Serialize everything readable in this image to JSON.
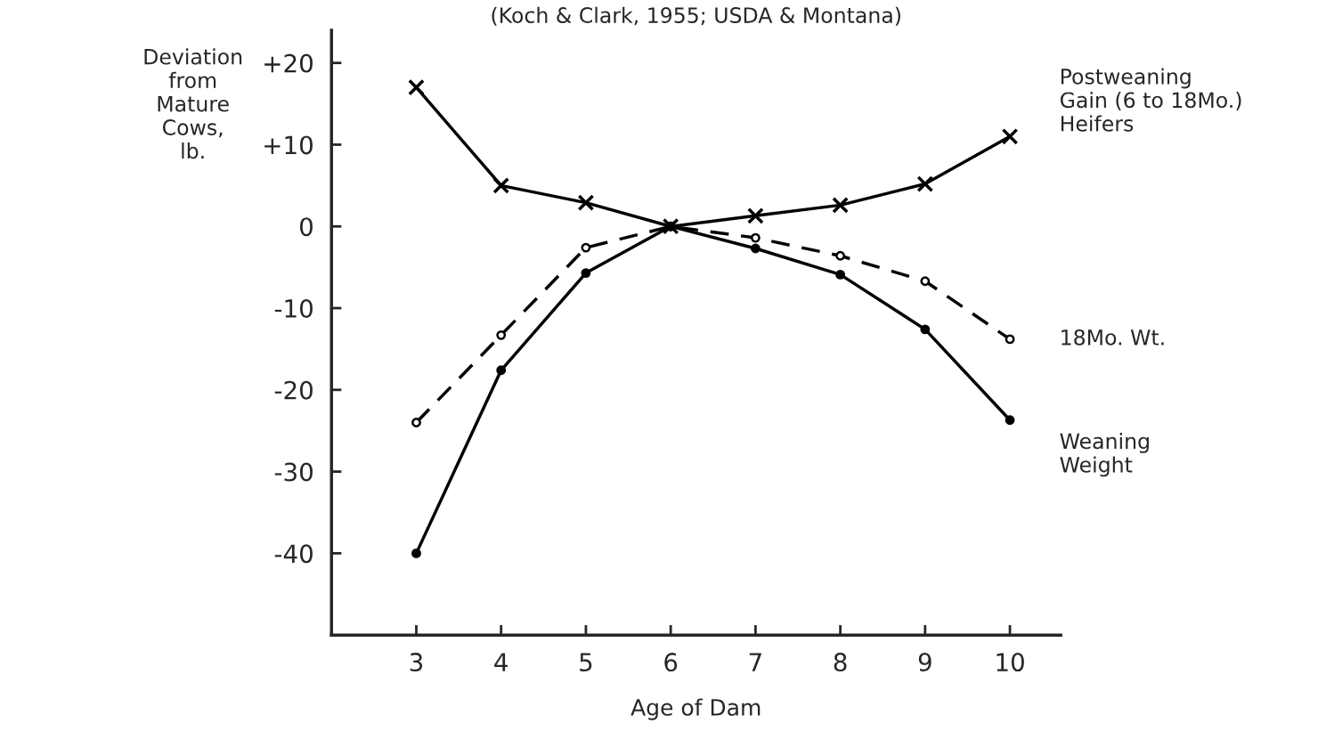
{
  "chart_data": {
    "type": "line",
    "title": "(Koch & Clark, 1955; USDA & Montana)",
    "xlabel": "Age of Dam",
    "ylabel": "Deviation\nfrom\nMature\nCows,\nlb.",
    "x": [
      3,
      4,
      5,
      6,
      7,
      8,
      9,
      10
    ],
    "series": [
      {
        "name": "Postweaning\nGain (6 to 18Mo.)\nHeifers",
        "color": "#000000",
        "marker": "cross",
        "line_style": "solid",
        "values": [
          17,
          5,
          2.9,
          0,
          1.3,
          2.6,
          5.2,
          11
        ]
      },
      {
        "name": "18Mo. Wt.",
        "color": "#000000",
        "marker": "circle",
        "line_style": "dashed",
        "values": [
          -24,
          -13.3,
          -2.6,
          0,
          -1.4,
          -3.6,
          -6.7,
          -13.8
        ]
      },
      {
        "name": "Weaning\nWeight",
        "color": "#000000",
        "marker": "dot",
        "line_style": "solid",
        "values": [
          -40,
          -17.6,
          -5.7,
          0,
          -2.7,
          -5.9,
          -12.6,
          -23.7
        ]
      }
    ],
    "xlim": [
      2,
      10.6
    ],
    "ylim": [
      -50,
      24
    ],
    "xticks": [
      3,
      4,
      5,
      6,
      7,
      8,
      9,
      10
    ],
    "yticks": [
      {
        "value": -40,
        "label": "-40"
      },
      {
        "value": -30,
        "label": "-30"
      },
      {
        "value": -20,
        "label": "-20"
      },
      {
        "value": -10,
        "label": "-10"
      },
      0,
      {
        "value": 10,
        "label": "+10"
      },
      {
        "value": 20,
        "label": "+20"
      }
    ],
    "grid": false,
    "legend": false
  }
}
